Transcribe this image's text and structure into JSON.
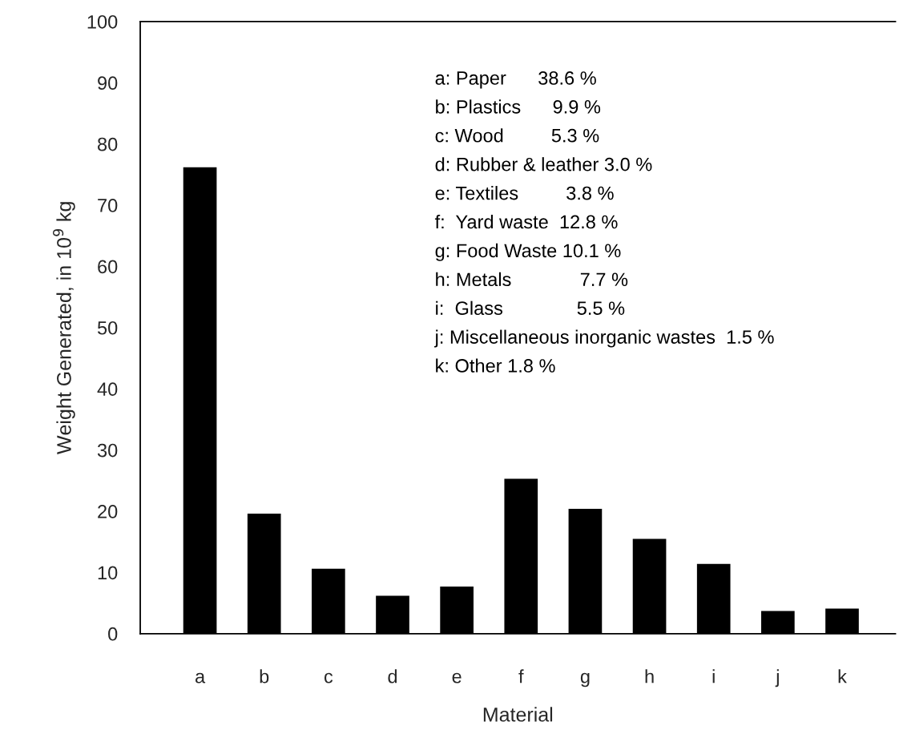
{
  "chart_data": {
    "type": "bar",
    "xlabel": "Material",
    "ylabel": "Weight Generated, in 10$^{9}$ kg",
    "categories": [
      "a",
      "b",
      "c",
      "d",
      "e",
      "f",
      "g",
      "h",
      "i",
      "j",
      "k"
    ],
    "values": [
      76.2,
      19.6,
      10.6,
      6.2,
      7.7,
      25.3,
      20.4,
      15.5,
      11.4,
      3.7,
      4.1
    ],
    "color": "#000000",
    "ylim": [
      0,
      100
    ],
    "yticks": [
      0,
      10,
      20,
      30,
      40,
      50,
      60,
      70,
      80,
      90,
      100
    ],
    "annotations": [
      "a: Paper      38.6 %",
      "b: Plastics      9.9 %",
      "c: Wood         5.3 %",
      "d: Rubber & leather 3.0 %",
      "e: Textiles         3.8 %",
      "f:  Yard waste  12.8 %",
      "g: Food Waste 10.1 %",
      "h: Metals             7.7 %",
      "i:  Glass              5.5 %",
      "j: Miscellaneous inorganic wastes  1.5 %",
      "k: Other 1.8 %"
    ]
  }
}
